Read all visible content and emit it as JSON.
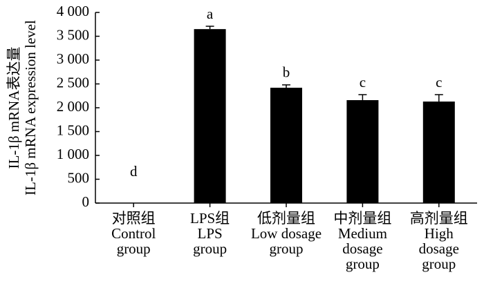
{
  "chart_data": {
    "type": "bar",
    "ylabel": [
      "IL-1β mRNA表达量",
      "IL-1β mRNA expression level"
    ],
    "categories": [
      [
        "对照组",
        "Control",
        "group"
      ],
      [
        "LPS组",
        "LPS",
        "group"
      ],
      [
        "低剂量组",
        "Low dosage",
        "group"
      ],
      [
        "中剂量组",
        "Medium",
        "dosage",
        "group"
      ],
      [
        "高剂量组",
        "High",
        "dosage",
        "group"
      ]
    ],
    "values": [
      0,
      3650,
      2420,
      2160,
      2130
    ],
    "errors": [
      0,
      60,
      60,
      115,
      145
    ],
    "annotations": [
      "d",
      "a",
      "b",
      "c",
      "c"
    ],
    "color": "#000000",
    "ylim": [
      0,
      4000
    ],
    "yticks": [
      0,
      500,
      {
        "value": 1000,
        "label": "1 000"
      },
      {
        "value": 1500,
        "label": "1 500"
      },
      {
        "value": 2000,
        "label": "2 000"
      },
      {
        "value": 2500,
        "label": "2 500"
      },
      {
        "value": 3000,
        "label": "3 000"
      },
      {
        "value": 3500,
        "label": "3 500"
      },
      {
        "value": 4000,
        "label": "4 000"
      }
    ]
  }
}
